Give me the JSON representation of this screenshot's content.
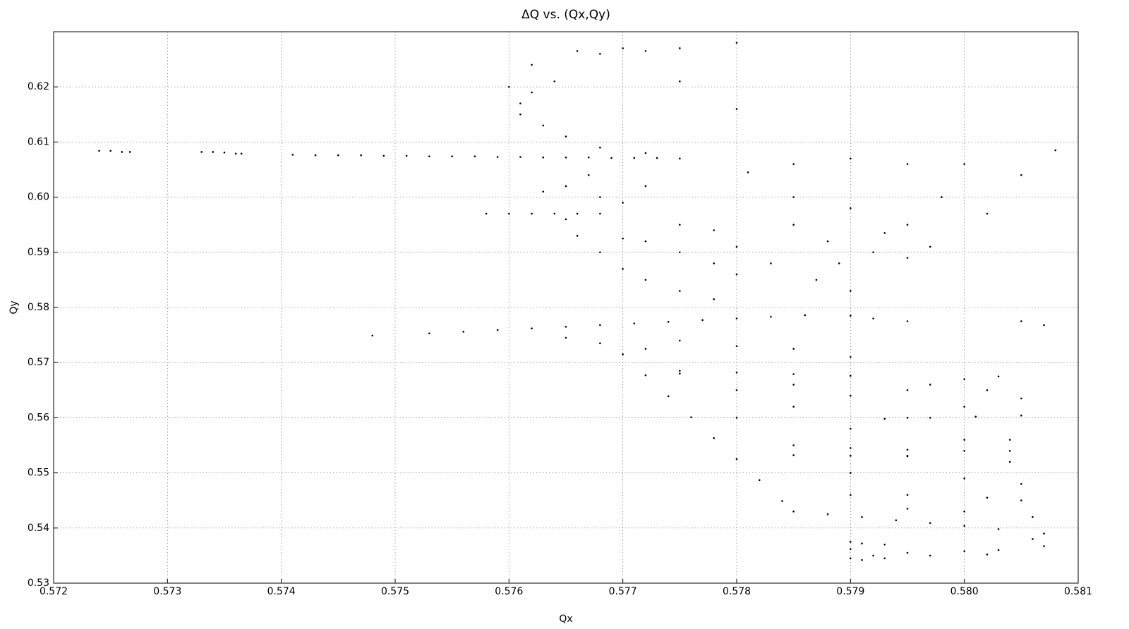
{
  "chart_data": {
    "type": "scatter",
    "title": "ΔQ vs. (Qx,Qy)",
    "x_label": "Qx",
    "y_label": "Qy",
    "color": "#000000",
    "grid": true,
    "xlim": [
      0.572,
      0.581
    ],
    "xticks": [
      0.572,
      0.573,
      0.574,
      0.575,
      0.576,
      0.577,
      0.578,
      0.579,
      {
        "value": 0.58,
        "label": "0.580"
      },
      0.581
    ],
    "ylim": [
      0.53,
      0.63
    ],
    "yticks": [
      0.53,
      0.54,
      0.55,
      0.56,
      0.57,
      0.58,
      0.59,
      {
        "value": 0.6,
        "label": "0.60"
      },
      0.61,
      0.62
    ],
    "x": [
      0.5724,
      0.5725,
      0.5726,
      0.57267,
      0.5733,
      0.5734,
      0.5735,
      0.5736,
      0.57365,
      0.5741,
      0.5743,
      0.5745,
      0.5747,
      0.5749,
      0.5751,
      0.5753,
      0.5755,
      0.5757,
      0.5759,
      0.5761,
      0.5763,
      0.5765,
      0.5767,
      0.5769,
      0.5771,
      0.5773,
      0.5775,
      0.5758,
      0.576,
      0.5762,
      0.5764,
      0.5766,
      0.5768,
      0.5753,
      0.5756,
      0.5759,
      0.5762,
      0.5765,
      0.5768,
      0.5771,
      0.5774,
      0.5777,
      0.578,
      0.5783,
      0.5786,
      0.577,
      0.5772,
      0.5774,
      0.5776,
      0.5778,
      0.578,
      0.5782,
      0.5784,
      0.5785,
      0.5788,
      0.5791,
      0.5794,
      0.5797,
      0.58,
      0.5803,
      0.5806,
      0.5807,
      0.5804,
      0.5804,
      0.5805,
      0.5805,
      0.5806,
      0.5807,
      0.578,
      0.5785,
      0.579,
      0.5795,
      0.58,
      0.5785,
      0.579,
      0.5795,
      0.58,
      0.579,
      0.5795,
      0.58,
      0.578,
      0.5775,
      0.5785,
      0.5795,
      0.58,
      0.579,
      0.5795,
      0.5802,
      0.5775,
      0.578,
      0.5785,
      0.579,
      0.5793,
      0.5797,
      0.5801,
      0.5805,
      0.579,
      0.5795,
      0.58,
      0.5804,
      0.5785,
      0.579,
      0.5795,
      0.5795,
      0.58,
      0.5803,
      0.579,
      0.5792,
      0.5797,
      0.5802,
      0.579,
      0.579,
      0.5791,
      0.5791,
      0.5793,
      0.5793,
      0.5765,
      0.5766,
      0.5768,
      0.577,
      0.5772,
      0.5775,
      0.5778,
      0.5772,
      0.5775,
      0.5778,
      0.578,
      0.5778,
      0.5775,
      0.577,
      0.5761,
      0.5761,
      0.5762,
      0.5763,
      0.5765,
      0.5768,
      0.5772,
      0.5764,
      0.576,
      0.5766,
      0.577,
      0.5772,
      0.5768,
      0.5775,
      0.578,
      0.5762,
      0.5775,
      0.578,
      0.5765,
      0.5763,
      0.5768,
      0.577,
      0.5767,
      0.5772,
      0.5785,
      0.579,
      0.5795,
      0.5792,
      0.5788,
      0.5783,
      0.5787,
      0.579,
      0.5795,
      0.5798,
      0.5785,
      0.579,
      0.5795,
      0.58,
      0.5781,
      0.5785,
      0.578,
      0.5793,
      0.5797,
      0.5789,
      0.5775,
      0.578,
      0.5785,
      0.579,
      0.5795,
      0.5792,
      0.579,
      0.5768,
      0.5772,
      0.58,
      0.5802,
      0.5805,
      0.5803,
      0.5797,
      0.5805,
      0.5807,
      0.5765,
      0.5748,
      0.5805,
      0.5808,
      0.5802
    ],
    "values": [
      0.6084,
      0.6084,
      0.6082,
      0.6082,
      0.6082,
      0.6082,
      0.6081,
      0.6079,
      0.6079,
      0.6077,
      0.6076,
      0.6076,
      0.6076,
      0.6075,
      0.6075,
      0.6074,
      0.6074,
      0.6074,
      0.6073,
      0.6073,
      0.6072,
      0.6072,
      0.6072,
      0.6071,
      0.6071,
      0.6071,
      0.607,
      0.597,
      0.597,
      0.597,
      0.597,
      0.597,
      0.597,
      0.5753,
      0.5756,
      0.5759,
      0.5762,
      0.5765,
      0.5768,
      0.5771,
      0.5774,
      0.5777,
      0.578,
      0.5783,
      0.5786,
      0.5715,
      0.5677,
      0.5639,
      0.5601,
      0.5563,
      0.5525,
      0.5487,
      0.5449,
      0.543,
      0.5425,
      0.542,
      0.5414,
      0.5409,
      0.5404,
      0.5398,
      0.538,
      0.5367,
      0.556,
      0.552,
      0.548,
      0.545,
      0.542,
      0.539,
      0.56,
      0.555,
      0.55,
      0.546,
      0.543,
      0.562,
      0.558,
      0.553,
      0.549,
      0.564,
      0.56,
      0.556,
      0.565,
      0.568,
      0.566,
      0.565,
      0.562,
      0.546,
      0.5435,
      0.5455,
      0.5685,
      0.5682,
      0.5679,
      0.5676,
      0.5598,
      0.56,
      0.5602,
      0.5604,
      0.5545,
      0.5542,
      0.554,
      0.554,
      0.5532,
      0.5531,
      0.5531,
      0.5355,
      0.5358,
      0.536,
      0.5362,
      0.535,
      0.535,
      0.5352,
      0.5375,
      0.5345,
      0.5372,
      0.5342,
      0.537,
      0.5345,
      0.596,
      0.593,
      0.59,
      0.587,
      0.585,
      0.583,
      0.5815,
      0.592,
      0.59,
      0.588,
      0.586,
      0.594,
      0.595,
      0.5925,
      0.617,
      0.615,
      0.619,
      0.613,
      0.611,
      0.609,
      0.608,
      0.621,
      0.62,
      0.6265,
      0.627,
      0.6265,
      0.626,
      0.627,
      0.628,
      0.624,
      0.621,
      0.616,
      0.602,
      0.601,
      0.6,
      0.599,
      0.604,
      0.602,
      0.6,
      0.598,
      0.595,
      0.59,
      0.592,
      0.588,
      0.585,
      0.583,
      0.589,
      0.6,
      0.606,
      0.607,
      0.606,
      0.606,
      0.6045,
      0.595,
      0.591,
      0.5935,
      0.591,
      0.588,
      0.574,
      0.573,
      0.5725,
      0.571,
      0.5775,
      0.578,
      0.5785,
      0.5735,
      0.5725,
      0.567,
      0.565,
      0.5635,
      0.5675,
      0.566,
      0.5775,
      0.5768,
      0.5745,
      0.5749,
      0.604,
      0.6085,
      0.597
    ]
  }
}
